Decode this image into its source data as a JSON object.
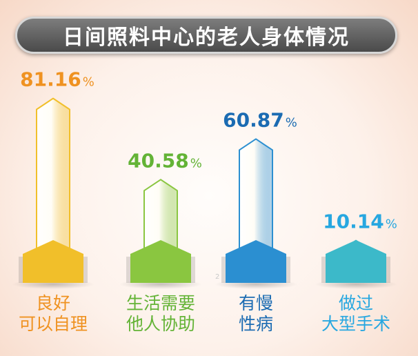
{
  "chart_data": {
    "type": "bar",
    "title": "日间照料中心的老人身体情况",
    "categories": [
      [
        "良好",
        "可以自理"
      ],
      [
        "生活需要",
        "他人协助"
      ],
      [
        "有慢",
        "性病"
      ],
      [
        "做过",
        "大型手术"
      ]
    ],
    "values": [
      "81.16",
      "40.58",
      "60.87",
      "10.14"
    ],
    "unit": "%",
    "colors": {
      "bars": [
        "#f1bf2a",
        "#8ac640",
        "#2b8fd1",
        "#3cb9c9"
      ],
      "value_labels": [
        "#ef9221",
        "#63b336",
        "#1b6bb2",
        "#27a7e0"
      ],
      "category_labels": [
        "#ef9221",
        "#63b336",
        "#1b6bb2",
        "#27a7e0"
      ]
    },
    "ylim": [
      0,
      100
    ]
  },
  "watermark": "2"
}
